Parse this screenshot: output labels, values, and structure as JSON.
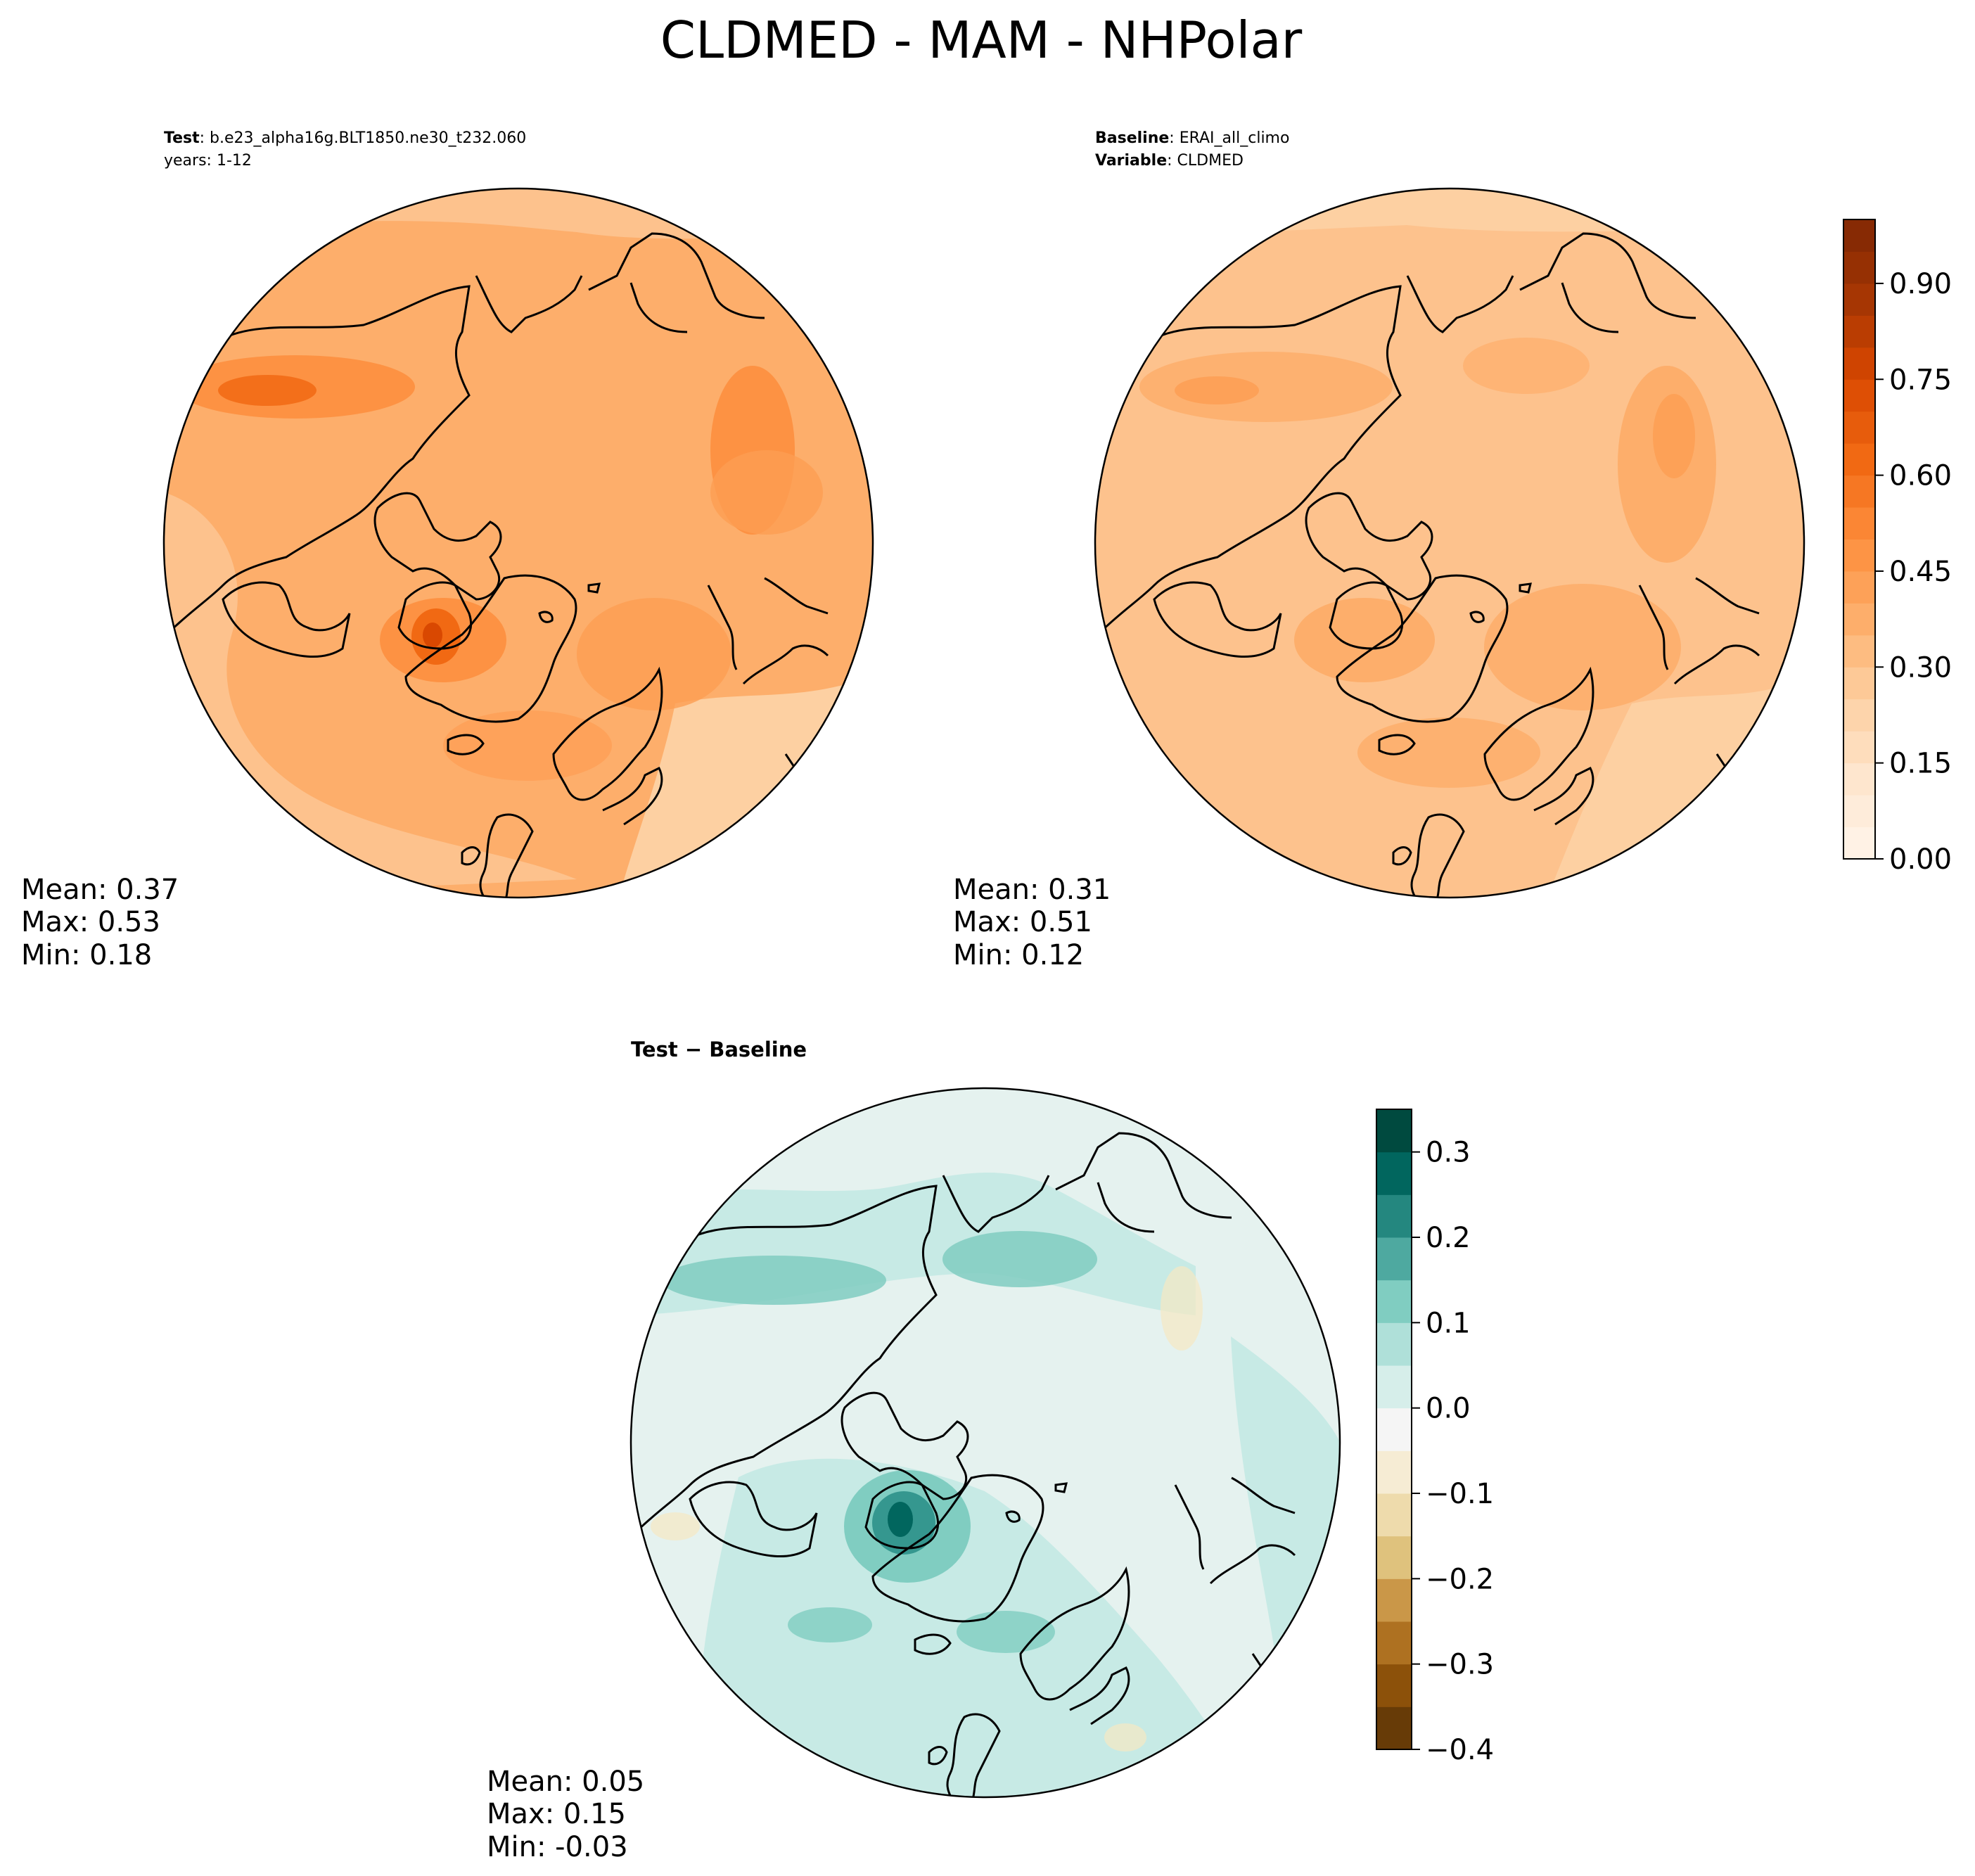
{
  "figure": {
    "title": "CLDMED - MAM - NHPolar",
    "colors": {
      "seq_oranges": [
        "#fff5eb",
        "#fee6ce",
        "#fdd0a2",
        "#fdae6b",
        "#fd8d3c",
        "#f16913",
        "#d94801",
        "#a63603",
        "#7f2704"
      ],
      "div_brbg": [
        "#543005",
        "#8c510a",
        "#bf812d",
        "#dfc27d",
        "#f6e8c3",
        "#f5f5f5",
        "#c7eae5",
        "#80cdc1",
        "#35978f",
        "#01665e",
        "#003c30"
      ],
      "land_outline": "#000000"
    }
  },
  "chart_data": [
    {
      "type": "contour-map",
      "panel": "test",
      "projection": "north-polar-stereographic",
      "header": {
        "line1_bold": "Test",
        "line1_text": ": b.e23_alpha16g.BLT1850.ne30_t232.060",
        "line2_text": "years: 1-12"
      },
      "stats": {
        "mean": "Mean:  0.37",
        "max": "Max:  0.53",
        "min": "Min:  0.18"
      },
      "field_range": [
        0.18,
        0.53
      ],
      "colormap": "seq_oranges"
    },
    {
      "type": "contour-map",
      "panel": "baseline",
      "projection": "north-polar-stereographic",
      "header": {
        "line1_bold": "Baseline",
        "line1_text": ": ERAI_all_climo",
        "line2_bold": "Variable",
        "line2_text": ": CLDMED"
      },
      "stats": {
        "mean": "Mean:  0.31",
        "max": "Max:  0.51",
        "min": "Min:  0.12"
      },
      "field_range": [
        0.12,
        0.51
      ],
      "colormap": "seq_oranges",
      "colorbar": {
        "range": [
          0.0,
          1.0
        ],
        "ticks": [
          0.0,
          0.15,
          0.3,
          0.45,
          0.6,
          0.75,
          0.9
        ],
        "tick_labels": [
          "0.00",
          "0.15",
          "0.30",
          "0.45",
          "0.60",
          "0.75",
          "0.90"
        ]
      }
    },
    {
      "type": "contour-map",
      "panel": "difference",
      "projection": "north-polar-stereographic",
      "header": {
        "text": "Test − Baseline"
      },
      "stats": {
        "mean": "Mean:  0.05",
        "max": "Max:  0.15",
        "min": "Min: -0.03"
      },
      "field_range": [
        -0.03,
        0.15
      ],
      "colormap": "div_brbg",
      "colorbar": {
        "range": [
          -0.4,
          0.35
        ],
        "ticks": [
          -0.4,
          -0.3,
          -0.2,
          -0.1,
          0.0,
          0.1,
          0.2,
          0.3
        ],
        "tick_labels": [
          "−0.4",
          "−0.3",
          "−0.2",
          "−0.1",
          "0.0",
          "0.1",
          "0.2",
          "0.3"
        ]
      }
    }
  ]
}
